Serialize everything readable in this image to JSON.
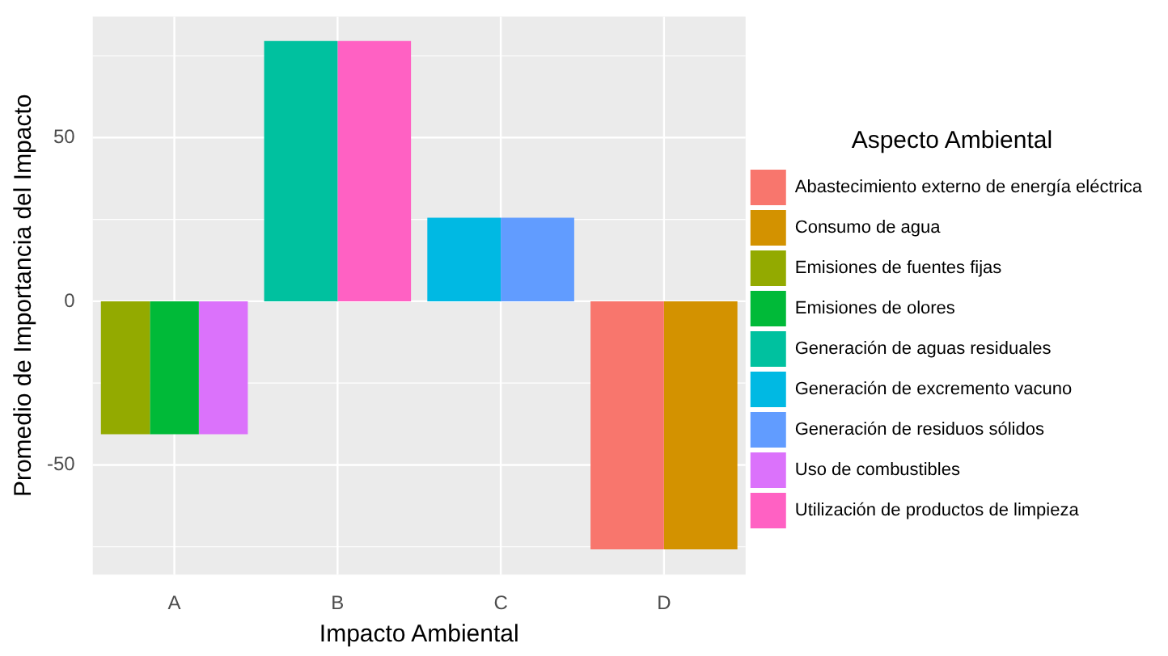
{
  "chart_data": {
    "type": "bar",
    "xlabel": "Impacto Ambiental",
    "ylabel": "Promedio de Importancia del Impacto",
    "legend_title": "Aspecto Ambiental",
    "categories": [
      "A",
      "B",
      "C",
      "D"
    ],
    "series": [
      {
        "name": "Abastecimiento externo de energía eléctrica",
        "color": "#f8766d",
        "values": [
          null,
          null,
          null,
          -75.8
        ]
      },
      {
        "name": "Consumo de agua",
        "color": "#d39200",
        "values": [
          null,
          null,
          null,
          -75.8
        ]
      },
      {
        "name": "Emisiones de fuentes fijas",
        "color": "#93aa00",
        "values": [
          -40.6,
          null,
          null,
          null
        ]
      },
      {
        "name": "Emisiones de olores",
        "color": "#00ba38",
        "values": [
          -40.6,
          null,
          null,
          null
        ]
      },
      {
        "name": "Generación de aguas residuales",
        "color": "#00c19f",
        "values": [
          null,
          79.5,
          null,
          null
        ]
      },
      {
        "name": "Generación de excremento vacuno",
        "color": "#00b9e3",
        "values": [
          null,
          null,
          25.5,
          null
        ]
      },
      {
        "name": "Generación de residuos sólidos",
        "color": "#619cff",
        "values": [
          null,
          null,
          25.5,
          null
        ]
      },
      {
        "name": "Uso de combustibles",
        "color": "#db72fb",
        "values": [
          -40.6,
          null,
          null,
          null
        ]
      },
      {
        "name": "Utilización de productos de limpieza",
        "color": "#ff61c3",
        "values": [
          null,
          79.5,
          null,
          null
        ]
      }
    ],
    "ylim": [
      -83.5,
      87
    ],
    "yticks": [
      {
        "value": -75,
        "label": null
      },
      -50,
      {
        "value": -25,
        "label": null
      },
      0,
      {
        "value": 25,
        "label": null
      },
      50,
      {
        "value": 75,
        "label": null
      }
    ],
    "grid": true,
    "legend": "right"
  }
}
